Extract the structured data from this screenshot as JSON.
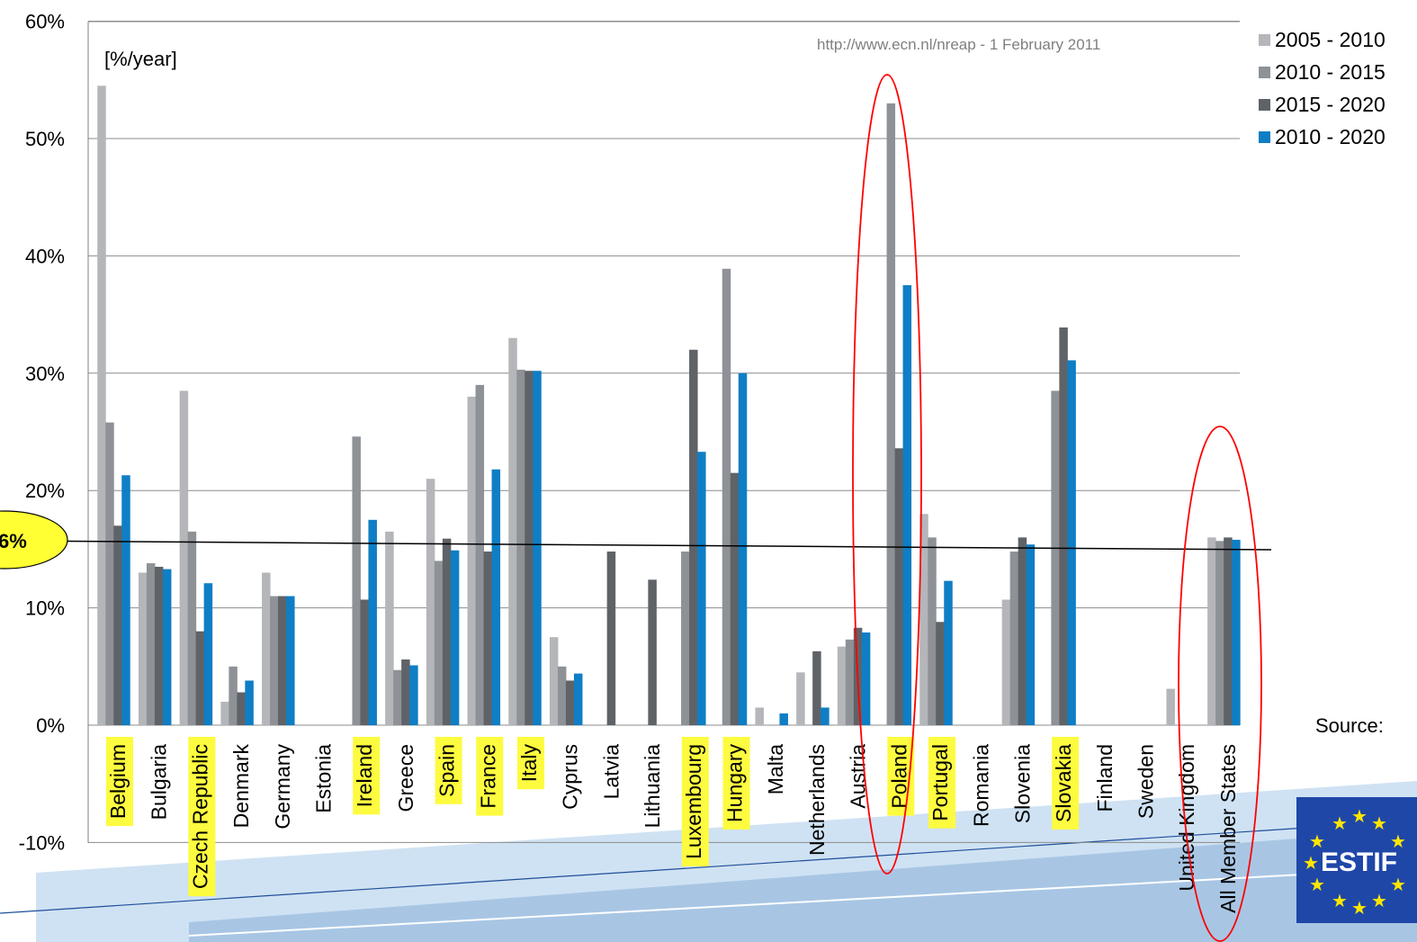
{
  "chart_data": {
    "type": "bar",
    "unit_label": "[%/year]",
    "source_note": "http://www.ecn.nl/nreap - 1 February 2011",
    "ylim": [
      -10,
      60
    ],
    "yticks": [
      "-10%",
      "0%",
      "10%",
      "20%",
      "30%",
      "40%",
      "50%",
      "60%"
    ],
    "ytick_values": [
      -10,
      0,
      10,
      20,
      30,
      40,
      50,
      60
    ],
    "grid": true,
    "legend_position": "top-right",
    "categories": [
      "Belgium",
      "Bulgaria",
      "Czech Republic",
      "Denmark",
      "Germany",
      "Estonia",
      "Ireland",
      "Greece",
      "Spain",
      "France",
      "Italy",
      "Cyprus",
      "Latvia",
      "Lithuania",
      "Luxembourg",
      "Hungary",
      "Malta",
      "Netherlands",
      "Austria",
      "Poland",
      "Portugal",
      "Romania",
      "Slovenia",
      "Slovakia",
      "Finland",
      "Sweden",
      "United Kingdom",
      "All Member States"
    ],
    "highlighted_categories": [
      "Belgium",
      "Czech Republic",
      "Ireland",
      "Spain",
      "France",
      "Italy",
      "Luxembourg",
      "Hungary",
      "Poland",
      "Portugal",
      "Slovakia"
    ],
    "circled_categories": [
      "Poland",
      "All Member States"
    ],
    "series": [
      {
        "name": "2005 - 2010",
        "color": "#b4b6b9",
        "values": [
          54.5,
          13.0,
          28.5,
          2.0,
          13.0,
          null,
          null,
          16.5,
          21.0,
          28.0,
          33.0,
          7.5,
          null,
          null,
          null,
          null,
          1.5,
          4.5,
          6.7,
          null,
          18.0,
          null,
          10.7,
          null,
          null,
          null,
          3.1,
          16.0
        ]
      },
      {
        "name": "2010 - 2015",
        "color": "#8e9297",
        "values": [
          25.8,
          13.8,
          16.5,
          5.0,
          11.0,
          null,
          24.6,
          4.7,
          14.0,
          29.0,
          30.3,
          5.0,
          null,
          null,
          14.8,
          38.9,
          null,
          null,
          7.3,
          53.0,
          16.0,
          null,
          14.8,
          28.5,
          null,
          null,
          null,
          15.7
        ]
      },
      {
        "name": "2015 - 2020",
        "color": "#5f6368",
        "values": [
          17.0,
          13.5,
          8.0,
          2.8,
          11.0,
          null,
          10.7,
          5.6,
          15.9,
          14.8,
          30.2,
          3.8,
          14.8,
          12.4,
          32.0,
          21.5,
          null,
          6.3,
          8.3,
          23.6,
          8.8,
          null,
          16.0,
          33.9,
          null,
          null,
          null,
          16.0
        ]
      },
      {
        "name": "2010 - 2020",
        "color": "#0f7ec5",
        "values": [
          21.3,
          13.3,
          12.1,
          3.8,
          11.0,
          null,
          17.5,
          5.1,
          14.9,
          21.8,
          30.2,
          4.4,
          null,
          null,
          23.3,
          30.0,
          1.0,
          1.5,
          7.9,
          37.5,
          12.3,
          null,
          15.4,
          31.1,
          null,
          null,
          null,
          15.8
        ]
      }
    ],
    "reference_line": {
      "value": 15.6,
      "callout_text": "6%"
    }
  },
  "credit": {
    "text": "Source:"
  },
  "logo": {
    "text": "ESTIF"
  },
  "colors": {
    "highlight": "#fdfb3f",
    "callout": "#ffff33",
    "circle": "#ff0000",
    "band_light": "#cfe2f3",
    "band_dark": "#a8c6e4"
  }
}
